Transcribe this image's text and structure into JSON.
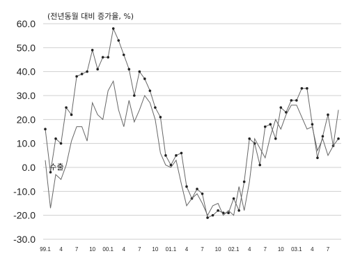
{
  "chart_data": {
    "type": "line",
    "unit_note": "(전년동월 대비 증가율, %)",
    "ylim": [
      -30,
      60
    ],
    "y_ticks": [
      "60.0",
      "50.0",
      "40.0",
      "30.0",
      "20.0",
      "10.0",
      "0.0",
      "-10.0",
      "-20.0",
      "-30.0"
    ],
    "y_tick_values": [
      60,
      50,
      40,
      30,
      20,
      10,
      0,
      -10,
      -20,
      -30
    ],
    "x_tick_labels": [
      "99.1",
      "4",
      "7",
      "10",
      "00.1",
      "4",
      "7",
      "10",
      "01.1",
      "4",
      "7",
      "10",
      "02.1",
      "4",
      "7",
      "10",
      "03.1",
      "4",
      "7"
    ],
    "x_tick_index": [
      0,
      3,
      6,
      9,
      12,
      15,
      18,
      21,
      24,
      27,
      30,
      33,
      36,
      39,
      42,
      45,
      48,
      51,
      54
    ],
    "grid": true,
    "series": [
      {
        "name": "",
        "marker": "circle",
        "values": [
          16,
          -2,
          12,
          10,
          25,
          22,
          38,
          39,
          40,
          49,
          41,
          46,
          46,
          58,
          53,
          47,
          41,
          30,
          40,
          37,
          32,
          25,
          21,
          5,
          1,
          5,
          6,
          -8,
          -13,
          -9,
          -11,
          -21,
          -20,
          -18,
          -19,
          -19,
          -13,
          -18,
          -6,
          12,
          10,
          1,
          17,
          18,
          12,
          25,
          23,
          28,
          28,
          33,
          33,
          18,
          4,
          13,
          22,
          9,
          12
        ]
      },
      {
        "name": "수출",
        "marker": "none",
        "values": [
          3,
          -17,
          -3,
          -5,
          1,
          11,
          17,
          17,
          11,
          27,
          22,
          20,
          32,
          36,
          24,
          17,
          28,
          19,
          24,
          30,
          27,
          20,
          6,
          1,
          0,
          3,
          -7,
          -16,
          -13,
          -11,
          -15,
          -20,
          -16,
          -15,
          -20,
          -18,
          -20,
          -8,
          -18,
          -6,
          12,
          8,
          4,
          13,
          20,
          16,
          22,
          26,
          26,
          21,
          16,
          17,
          7,
          12,
          5,
          9,
          24
        ]
      }
    ],
    "annotations": [
      {
        "text": "수출",
        "series": 1,
        "index": 3
      }
    ]
  }
}
